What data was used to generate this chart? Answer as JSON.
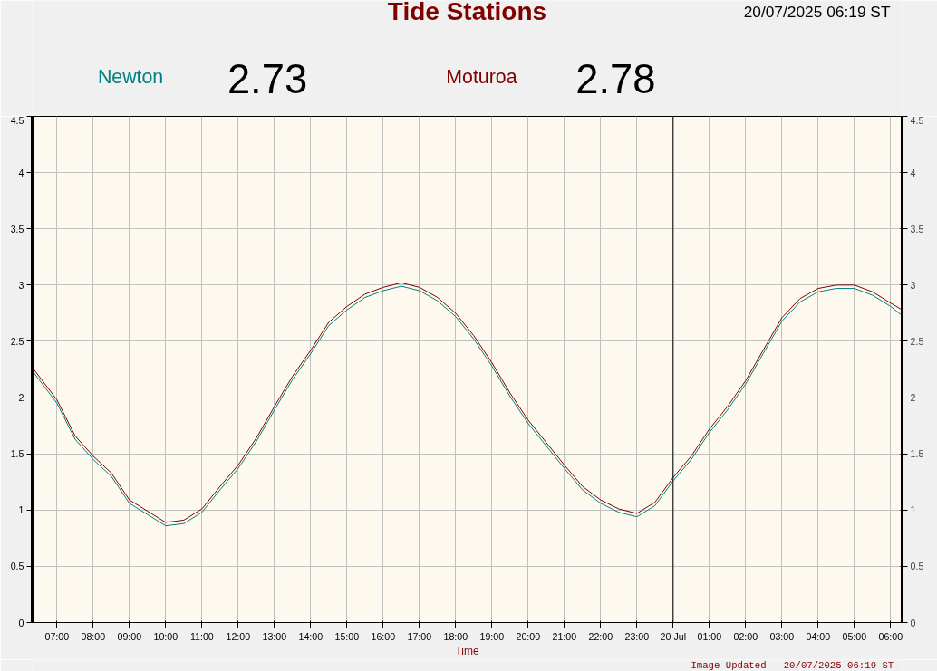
{
  "chart_data": {
    "type": "line",
    "title": "Tide Stations",
    "xlabel": "Time",
    "annotations": [
      "20/07/2025 06:19 ST",
      "2.73",
      "2.78",
      "Image Updated - 20/07/2025 06:19 ST"
    ],
    "x": [
      "2025-07-19T06:19",
      "2025-07-19T07:00",
      "2025-07-19T07:30",
      "2025-07-19T08:00",
      "2025-07-19T08:30",
      "2025-07-19T09:00",
      "2025-07-19T09:30",
      "2025-07-19T10:00",
      "2025-07-19T10:30",
      "2025-07-19T11:00",
      "2025-07-19T11:30",
      "2025-07-19T12:00",
      "2025-07-19T12:30",
      "2025-07-19T13:00",
      "2025-07-19T13:30",
      "2025-07-19T14:00",
      "2025-07-19T14:30",
      "2025-07-19T15:00",
      "2025-07-19T15:30",
      "2025-07-19T16:00",
      "2025-07-19T16:30",
      "2025-07-19T17:00",
      "2025-07-19T17:30",
      "2025-07-19T18:00",
      "2025-07-19T18:30",
      "2025-07-19T19:00",
      "2025-07-19T19:30",
      "2025-07-19T20:00",
      "2025-07-19T20:30",
      "2025-07-19T21:00",
      "2025-07-19T21:30",
      "2025-07-19T22:00",
      "2025-07-19T22:30",
      "2025-07-19T23:00",
      "2025-07-19T23:30",
      "2025-07-20T00:00",
      "2025-07-20T00:30",
      "2025-07-20T01:00",
      "2025-07-20T01:30",
      "2025-07-20T02:00",
      "2025-07-20T02:30",
      "2025-07-20T03:00",
      "2025-07-20T03:30",
      "2025-07-20T04:00",
      "2025-07-20T04:30",
      "2025-07-20T05:00",
      "2025-07-20T05:30",
      "2025-07-20T06:00",
      "2025-07-20T06:19"
    ],
    "series": [
      {
        "name": "Newton",
        "color": "#008080",
        "values": [
          2.24,
          1.95,
          1.63,
          1.45,
          1.3,
          1.06,
          0.96,
          0.86,
          0.88,
          0.98,
          1.18,
          1.37,
          1.61,
          1.89,
          2.16,
          2.39,
          2.64,
          2.78,
          2.89,
          2.95,
          2.99,
          2.95,
          2.86,
          2.72,
          2.52,
          2.28,
          2.01,
          1.77,
          1.57,
          1.37,
          1.18,
          1.06,
          0.98,
          0.94,
          1.04,
          1.26,
          1.45,
          1.69,
          1.89,
          2.12,
          2.4,
          2.68,
          2.85,
          2.94,
          2.97,
          2.97,
          2.91,
          2.81,
          2.73
        ]
      },
      {
        "name": "Moturoa",
        "color": "#800000",
        "values": [
          2.27,
          1.98,
          1.66,
          1.48,
          1.33,
          1.09,
          0.99,
          0.89,
          0.91,
          1.01,
          1.21,
          1.4,
          1.64,
          1.92,
          2.19,
          2.42,
          2.67,
          2.81,
          2.92,
          2.98,
          3.02,
          2.98,
          2.89,
          2.75,
          2.55,
          2.31,
          2.04,
          1.8,
          1.6,
          1.4,
          1.21,
          1.09,
          1.01,
          0.97,
          1.07,
          1.29,
          1.48,
          1.72,
          1.92,
          2.15,
          2.43,
          2.71,
          2.88,
          2.97,
          3.0,
          3.0,
          2.94,
          2.84,
          2.78
        ]
      }
    ],
    "xlim": [
      "2025-07-19T06:19",
      "2025-07-20T06:19"
    ],
    "xticks": [
      {
        "value": "2025-07-19T07:00",
        "label": "07:00"
      },
      {
        "value": "2025-07-19T08:00",
        "label": "08:00"
      },
      {
        "value": "2025-07-19T09:00",
        "label": "09:00"
      },
      {
        "value": "2025-07-19T10:00",
        "label": "10:00"
      },
      {
        "value": "2025-07-19T11:00",
        "label": "11:00"
      },
      {
        "value": "2025-07-19T12:00",
        "label": "12:00"
      },
      {
        "value": "2025-07-19T13:00",
        "label": "13:00"
      },
      {
        "value": "2025-07-19T14:00",
        "label": "14:00"
      },
      {
        "value": "2025-07-19T15:00",
        "label": "15:00"
      },
      {
        "value": "2025-07-19T16:00",
        "label": "16:00"
      },
      {
        "value": "2025-07-19T17:00",
        "label": "17:00"
      },
      {
        "value": "2025-07-19T18:00",
        "label": "18:00"
      },
      {
        "value": "2025-07-19T19:00",
        "label": "19:00"
      },
      {
        "value": "2025-07-19T20:00",
        "label": "20:00"
      },
      {
        "value": "2025-07-19T21:00",
        "label": "21:00"
      },
      {
        "value": "2025-07-19T22:00",
        "label": "22:00"
      },
      {
        "value": "2025-07-19T23:00",
        "label": "23:00"
      },
      {
        "value": "2025-07-20T00:00",
        "label": "20 Jul"
      },
      {
        "value": "2025-07-20T01:00",
        "label": "01:00"
      },
      {
        "value": "2025-07-20T02:00",
        "label": "02:00"
      },
      {
        "value": "2025-07-20T03:00",
        "label": "03:00"
      },
      {
        "value": "2025-07-20T04:00",
        "label": "04:00"
      },
      {
        "value": "2025-07-20T05:00",
        "label": "05:00"
      },
      {
        "value": "2025-07-20T06:00",
        "label": "06:00"
      }
    ],
    "ylim": [
      0,
      4.5
    ],
    "yticks": [
      0,
      0.5,
      1,
      1.5,
      2,
      2.5,
      3,
      3.5,
      4,
      4.5
    ],
    "y2lim": [
      0,
      4.5
    ],
    "y2ticks": [
      0,
      0.5,
      1,
      1.5,
      2,
      2.5,
      3,
      3.5,
      4,
      4.5
    ],
    "ref_lines": [
      {
        "axis": "x",
        "value": "2025-07-20T00:00",
        "label": null,
        "color": "#000000"
      }
    ],
    "grid": true,
    "line_style": "solid"
  }
}
